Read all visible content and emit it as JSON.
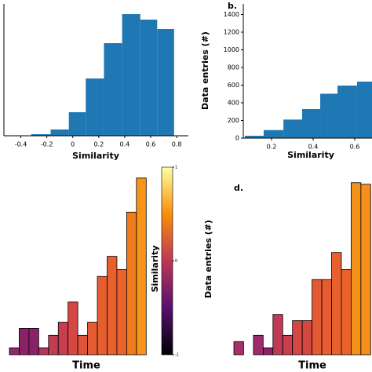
{
  "chart_data": [
    {
      "type": "histogram",
      "xlabel": "Similarity",
      "color": "#1f77b4",
      "bins": [
        -0.32,
        -0.17,
        -0.03,
        0.1,
        0.24,
        0.38,
        0.52,
        0.65,
        0.78
      ],
      "values": [
        2,
        8,
        30,
        73,
        118,
        155,
        148,
        136
      ],
      "xlim": [
        -0.53,
        0.89
      ],
      "xticks": [
        -0.4,
        -0.2,
        0.0,
        0.2,
        0.4,
        0.6,
        0.8
      ],
      "ylim": [
        0,
        168
      ]
    },
    {
      "type": "histogram",
      "panel_label": "b.",
      "xlabel": "Similarity",
      "ylabel": "Data entries (#)",
      "color": "#1f77b4",
      "bins": [
        0.071,
        0.162,
        0.257,
        0.347,
        0.434,
        0.517,
        0.611,
        0.683
      ],
      "values": [
        27,
        91,
        210,
        329,
        503,
        595,
        640
      ],
      "xlim": [
        0.064,
        0.683
      ],
      "xticks": [
        0.2,
        0.4,
        0.6
      ],
      "ylim": [
        0,
        1520
      ],
      "yticks": [
        0,
        200,
        400,
        600,
        800,
        1000,
        1200,
        1400
      ]
    },
    {
      "type": "colorbar_bar",
      "xlabel": "Time",
      "values": [
        9,
        34,
        34,
        9,
        25,
        42,
        68,
        25,
        42,
        101,
        127,
        110,
        184,
        228
      ],
      "colors": [
        "#8e2a6a",
        "#8a2267",
        "#8a2267",
        "#b5365b",
        "#c33d52",
        "#c83e50",
        "#d44742",
        "#e0543a",
        "#e55c30",
        "#e65d2f",
        "#e8602d",
        "#ea632a",
        "#f07b1a",
        "#f6951a"
      ],
      "ylim": [
        0,
        240
      ],
      "colorbar": {
        "label": "Similarity",
        "ylim": [
          -1,
          1
        ],
        "yticks": [
          -1,
          0,
          1
        ]
      }
    },
    {
      "type": "colorbar_bar",
      "panel_label": "d.",
      "xlabel": "Time",
      "ylabel": "Data entries (#)",
      "values": [
        17,
        0,
        25,
        9,
        52,
        25,
        44,
        44,
        97,
        97,
        132,
        110,
        222,
        220
      ],
      "colors": [
        "#a8306a",
        "#a8306a",
        "#9c2b6a",
        "#8c2369",
        "#c03a55",
        "#c83e4f",
        "#d54742",
        "#d44742",
        "#e35933",
        "#e55c30",
        "#e8612c",
        "#ea632a",
        "#f5901a",
        "#f58e1b"
      ],
      "ylim": [
        0,
        240
      ]
    }
  ]
}
